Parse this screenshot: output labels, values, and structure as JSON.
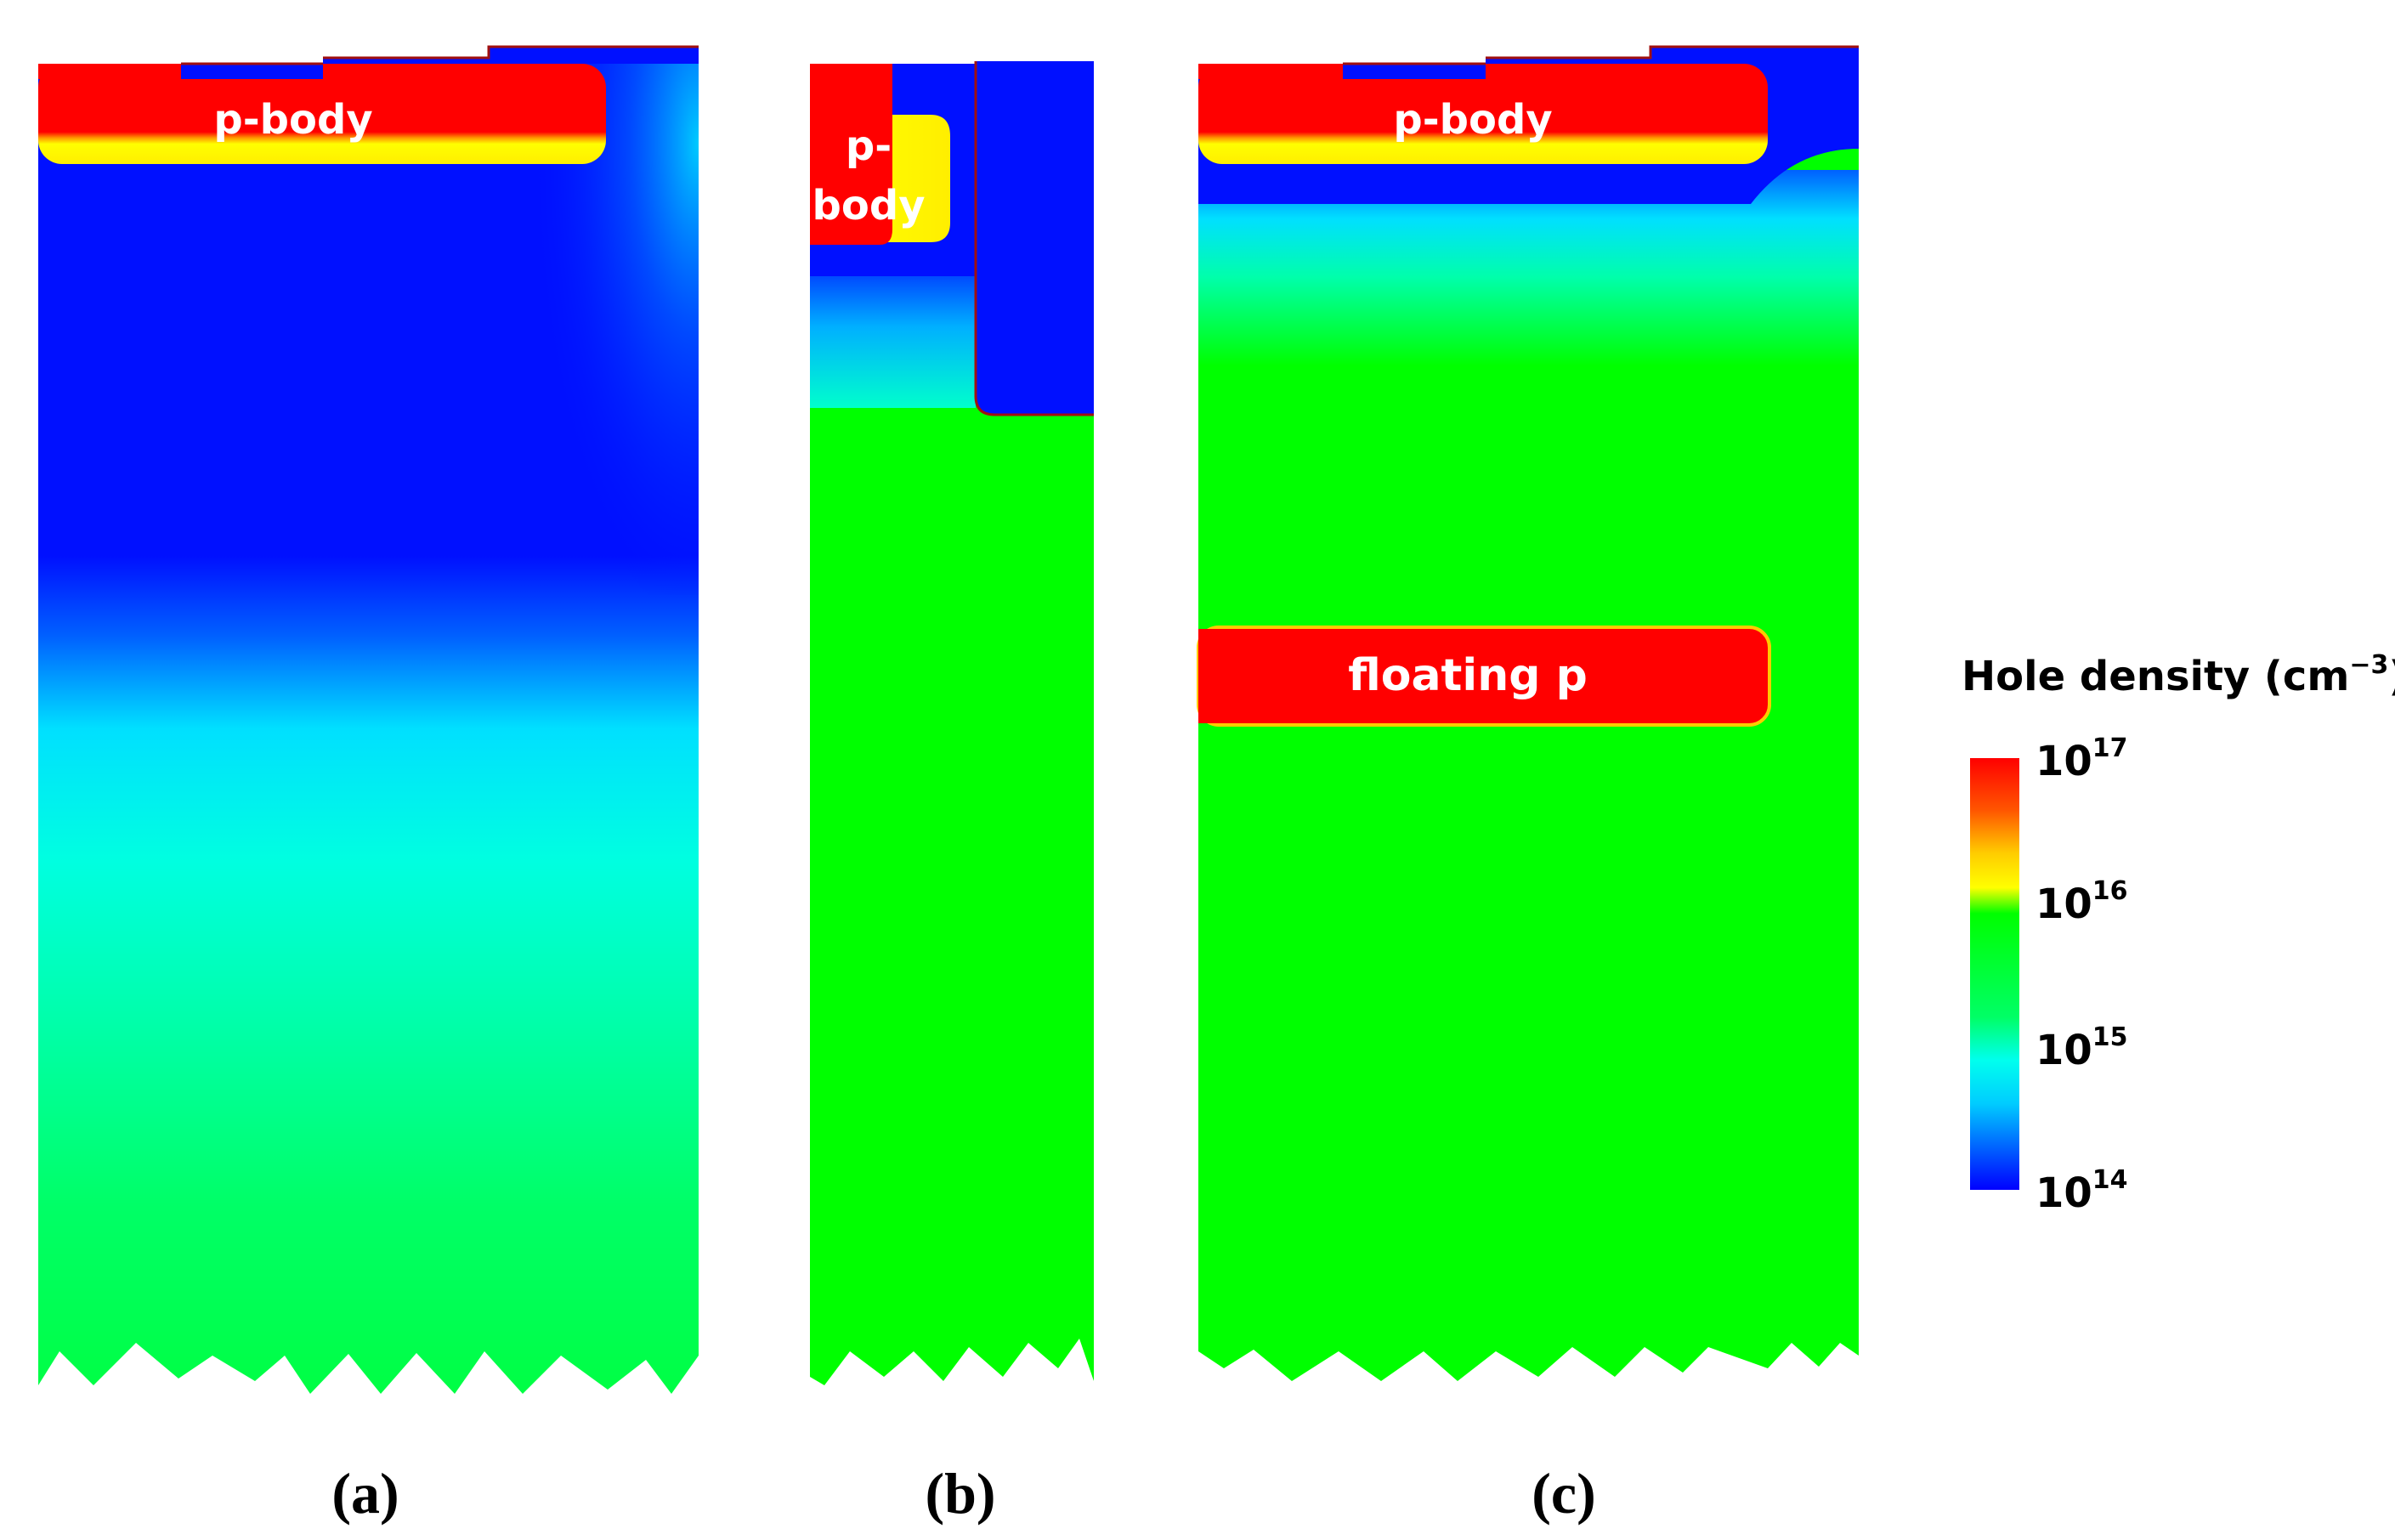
{
  "figure": {
    "panels": [
      {
        "id": "a",
        "label": "(a)",
        "regions": [
          {
            "name": "p-body",
            "text": "p-body"
          }
        ]
      },
      {
        "id": "b",
        "label": "(b)",
        "regions": [
          {
            "name": "p-body",
            "lines": [
              "p-",
              "body"
            ]
          }
        ]
      },
      {
        "id": "c",
        "label": "(c)",
        "regions": [
          {
            "name": "p-body",
            "text": "p-body"
          },
          {
            "name": "floating-p",
            "text": "floating p"
          }
        ]
      }
    ],
    "colorbar": {
      "title": "Hole density (cm",
      "title_superscript": "−3",
      "title_close": ")",
      "scale": "log",
      "ticks": [
        {
          "base": "10",
          "exp": "17",
          "value": 1e+17
        },
        {
          "base": "10",
          "exp": "16",
          "value": 1e+16
        },
        {
          "base": "10",
          "exp": "15",
          "value": 1000000000000000.0
        },
        {
          "base": "10",
          "exp": "14",
          "value": 100000000000000.0
        }
      ],
      "colors": {
        "high": "#ff0000",
        "upper_mid": "#ffff00",
        "mid": "#00ff00",
        "lower_mid": "#00ffff",
        "low": "#0000ff"
      }
    },
    "colors": {
      "p_region": "#ff0000",
      "depletion": "#0010ff",
      "drift_green": "#00ff00",
      "oxide_outline": "#a01010"
    }
  }
}
